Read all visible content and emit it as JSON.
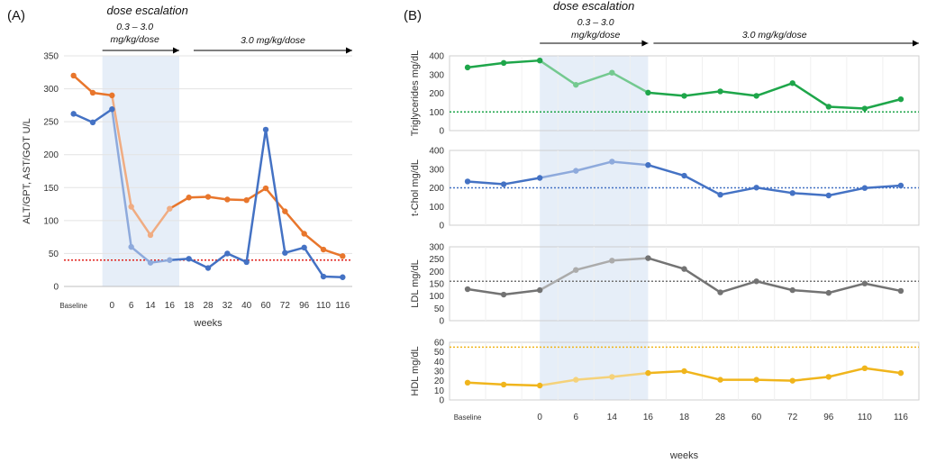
{
  "chart_data": [
    {
      "type": "line",
      "panel_label": "(A)",
      "title": "dose escalation",
      "phase_escalation_label": [
        "0.3 – 3.0",
        "mg/kg/dose"
      ],
      "phase_maintenance_label": "3.0 mg/kg/dose",
      "categories": [
        "Baseline",
        "",
        "0",
        "6",
        "14",
        "16",
        "18",
        "28",
        "32",
        "40",
        "60",
        "72",
        "96",
        "110",
        "116"
      ],
      "xlabel": "weeks",
      "ylabel": "ALT/GPT, AST/GOT U/L",
      "ylim": [
        0,
        350
      ],
      "yticks": [
        0,
        50,
        100,
        150,
        200,
        250,
        300,
        350
      ],
      "reference_line": 40,
      "reference_color": "#e0201b",
      "shaded_range": [
        "0",
        "16"
      ],
      "series": [
        {
          "name": "orange series",
          "color": "#e8762c",
          "light_color": "#f0ac82",
          "values": [
            320,
            294,
            290,
            121,
            78,
            118,
            135,
            136,
            132,
            131,
            149,
            114,
            80,
            56,
            46
          ]
        },
        {
          "name": "blue series",
          "color": "#4472c4",
          "light_color": "#8eaadc",
          "values": [
            262,
            249,
            269,
            60,
            36,
            40,
            42,
            28,
            50,
            37,
            238,
            51,
            59,
            15,
            14
          ]
        }
      ]
    },
    {
      "type": "line",
      "panel_label": "(B)",
      "title": "dose escalation",
      "phase_escalation_label": [
        "0.3 – 3.0",
        "mg/kg/dose"
      ],
      "phase_maintenance_label": "3.0 mg/kg/dose",
      "categories": [
        "Baseline",
        "",
        "0",
        "6",
        "14",
        "16",
        "18",
        "28",
        "60",
        "72",
        "96",
        "110",
        "116"
      ],
      "xlabel": "weeks",
      "shaded_range": [
        "0",
        "16"
      ],
      "panels": [
        {
          "ylabel": "Triglycerides mg/dL",
          "ylim": [
            0,
            400
          ],
          "yticks": [
            0,
            100,
            200,
            300,
            400
          ],
          "reference_line": 100,
          "color": "#1ea64a",
          "light_color": "#74c990",
          "values": [
            338,
            362,
            375,
            245,
            310,
            203,
            186,
            210,
            186,
            254,
            128,
            118,
            168
          ]
        },
        {
          "ylabel": "t-Chol mg/dL",
          "ylim": [
            0,
            400
          ],
          "yticks": [
            0,
            100,
            200,
            300,
            400
          ],
          "reference_line": 200,
          "color": "#4472c4",
          "light_color": "#8eaadc",
          "values": [
            234,
            219,
            253,
            291,
            340,
            322,
            265,
            163,
            201,
            172,
            159,
            199,
            212
          ]
        },
        {
          "ylabel": "LDL mg/dL",
          "ylim": [
            0,
            300
          ],
          "yticks": [
            0,
            50,
            100,
            150,
            200,
            250,
            300
          ],
          "reference_line": 160,
          "color": "#737373",
          "light_color": "#ababab",
          "values": [
            128,
            106,
            124,
            206,
            244,
            254,
            210,
            115,
            160,
            124,
            113,
            151,
            121
          ]
        },
        {
          "ylabel": "HDL mg/dL",
          "ylim": [
            0,
            60
          ],
          "yticks": [
            0,
            10,
            20,
            30,
            40,
            50,
            60
          ],
          "reference_line": 55,
          "color": "#f0b51c",
          "light_color": "#f5d27a",
          "values": [
            18,
            16,
            15,
            21,
            24,
            28,
            30,
            21,
            21,
            20,
            24,
            33,
            28
          ]
        }
      ]
    }
  ]
}
